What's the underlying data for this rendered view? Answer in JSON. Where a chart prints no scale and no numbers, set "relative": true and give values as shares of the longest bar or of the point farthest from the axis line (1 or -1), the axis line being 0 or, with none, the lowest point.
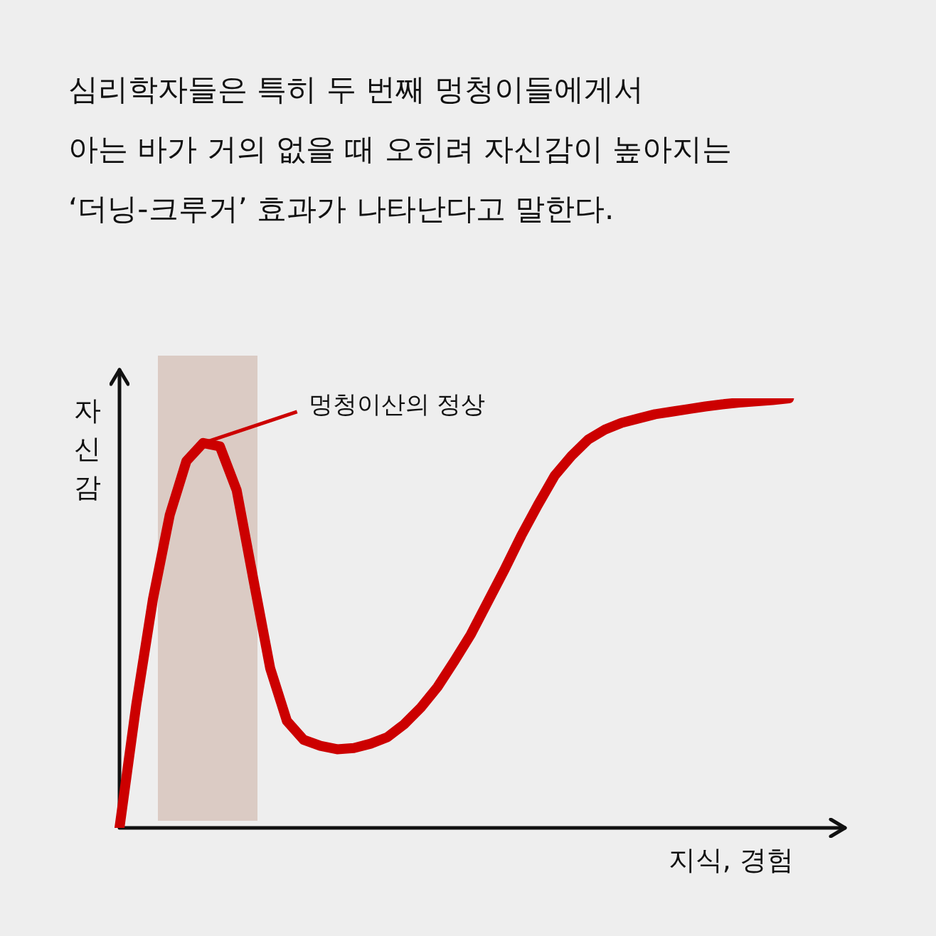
{
  "chart_data": {
    "type": "line",
    "title": "심리학자들은 특히 두 번째 멍청이들에게서\n아는 바가 거의 없을 때 오히려 자신감이 높아지는\n‘더닝-크루거’ 효과가 나타난다고 말한다.",
    "xlabel": "지식, 경험",
    "ylabel": "자신감",
    "relative": true,
    "legend": false,
    "marker": "none",
    "categories": [
      null,
      null,
      null,
      null,
      null,
      null,
      null,
      null,
      null,
      null,
      null,
      null,
      null,
      null,
      null,
      null,
      null,
      null,
      null,
      null,
      null,
      null,
      null,
      null,
      null,
      null,
      null,
      null,
      null,
      null,
      null,
      null,
      null,
      null,
      null,
      null,
      null,
      null,
      null,
      null,
      null,
      null,
      null,
      null
    ],
    "series": [
      {
        "color": "#cc0000",
        "values": [
          0,
          0.286,
          0.533,
          0.728,
          0.854,
          0.896,
          0.888,
          0.786,
          0.578,
          0.372,
          0.249,
          0.205,
          0.191,
          0.183,
          0.186,
          0.196,
          0.211,
          0.241,
          0.28,
          0.328,
          0.388,
          0.451,
          0.526,
          0.601,
          0.68,
          0.752,
          0.82,
          0.866,
          0.904,
          0.927,
          0.943,
          0.953,
          0.963,
          0.969,
          0.975,
          0.981,
          0.986,
          0.99,
          0.993,
          0.996,
          1,
          null,
          null,
          null
        ]
      }
    ],
    "annotations": [
      "멍청이산의 정상"
    ]
  }
}
